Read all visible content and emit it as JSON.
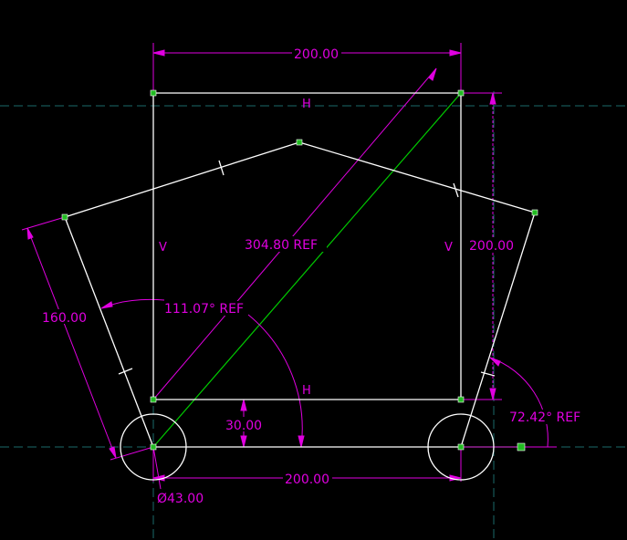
{
  "colors": {
    "background": "#000000",
    "geometry": "#ffffff",
    "construction": "#00cc00",
    "dimension": "#e000e0",
    "centerline": "#1a6a6a",
    "point": "#22bb22"
  },
  "dimensions": {
    "top_width": "200.00",
    "right_height": "200.00",
    "diagonal": "304.80 REF",
    "left_edge": "160.00",
    "angle_left": "111.07° REF",
    "angle_right": "72.42° REF",
    "offset": "30.00",
    "bottom_width": "200.00",
    "diameter": "Ø43.00"
  },
  "constraints": {
    "top": "H",
    "middle": "H",
    "left": "V",
    "right": "V"
  }
}
